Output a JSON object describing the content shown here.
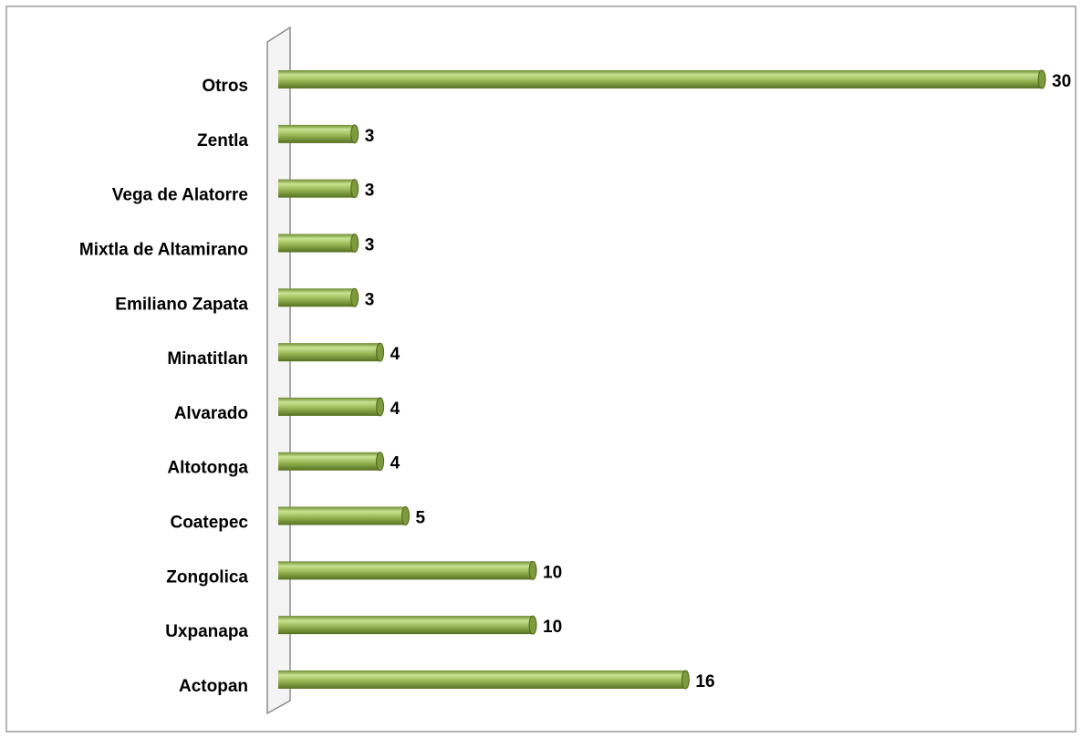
{
  "chart_data": {
    "type": "bar",
    "orientation": "horizontal",
    "categories": [
      "Otros",
      "Zentla",
      "Vega de Alatorre",
      "Mixtla de Altamirano",
      "Emiliano Zapata",
      "Minatitlan",
      "Alvarado",
      "Altotonga",
      "Coatepec",
      "Zongolica",
      "Uxpanapa",
      "Actopan"
    ],
    "values": [
      30,
      3,
      3,
      3,
      3,
      4,
      4,
      4,
      5,
      10,
      10,
      16
    ],
    "color": "#9bbb59"
  }
}
